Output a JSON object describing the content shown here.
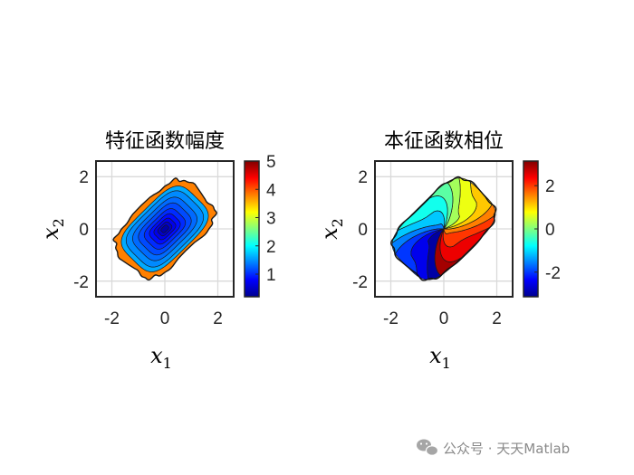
{
  "chart_data": [
    {
      "type": "contour",
      "title": "特征函数幅度",
      "xlabel": "x",
      "xlabel_sub": "1",
      "ylabel": "x",
      "ylabel_sub": "2",
      "xlim": [
        -2.6,
        2.6
      ],
      "ylim": [
        -2.6,
        2.6
      ],
      "xticks": [
        -2,
        0,
        2
      ],
      "yticks": [
        -2,
        0,
        2
      ],
      "grid": true,
      "colorbar": {
        "range": [
          0.2,
          5.0
        ],
        "ticks": [
          1,
          2,
          3,
          4,
          5
        ],
        "colormap": "jet"
      },
      "levels": [
        {
          "value": 3.8,
          "r": 1.55
        },
        {
          "value": 1.6,
          "r": 1.35
        },
        {
          "value": 1.45,
          "r": 1.2
        },
        {
          "value": 1.3,
          "r": 1.0
        },
        {
          "value": 1.15,
          "r": 0.82
        },
        {
          "value": 1.0,
          "r": 0.64
        },
        {
          "value": 0.85,
          "r": 0.48
        },
        {
          "value": 0.7,
          "r": 0.34
        },
        {
          "value": 0.55,
          "r": 0.22
        },
        {
          "value": 0.4,
          "r": 0.12
        }
      ]
    },
    {
      "type": "contour",
      "title": "本征函数相位",
      "xlabel": "x",
      "xlabel_sub": "1",
      "ylabel": "x",
      "ylabel_sub": "2",
      "xlim": [
        -2.6,
        2.6
      ],
      "ylim": [
        -2.6,
        2.6
      ],
      "xticks": [
        -2,
        0,
        2
      ],
      "yticks": [
        -2,
        0,
        2
      ],
      "grid": true,
      "colorbar": {
        "range": [
          -3.14,
          3.14
        ],
        "ticks": [
          -2,
          0,
          2
        ],
        "colormap": "jet"
      },
      "phase_levels": 14
    }
  ],
  "watermark": "公众号 · 天天Matlab"
}
